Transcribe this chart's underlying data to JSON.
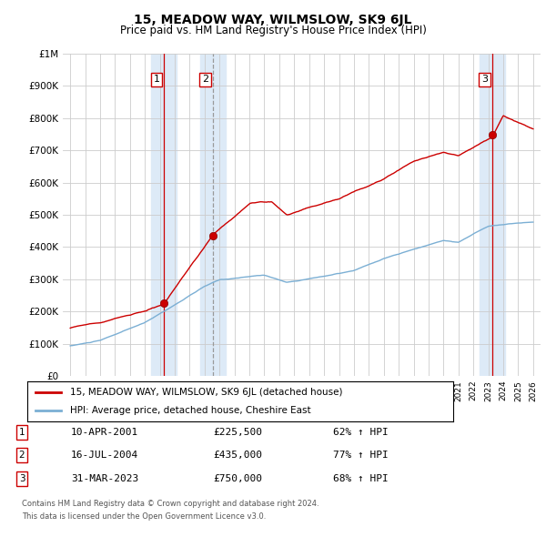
{
  "title": "15, MEADOW WAY, WILMSLOW, SK9 6JL",
  "subtitle": "Price paid vs. HM Land Registry's House Price Index (HPI)",
  "ylabel_ticks": [
    "£0",
    "£100K",
    "£200K",
    "£300K",
    "£400K",
    "£500K",
    "£600K",
    "£700K",
    "£800K",
    "£900K",
    "£1M"
  ],
  "ytick_values": [
    0,
    100000,
    200000,
    300000,
    400000,
    500000,
    600000,
    700000,
    800000,
    900000,
    1000000
  ],
  "xlim_start": 1994.5,
  "xlim_end": 2026.5,
  "ylim_min": 0,
  "ylim_max": 1000000,
  "sale_dates": [
    2001.27,
    2004.54,
    2023.25
  ],
  "sale_prices": [
    225500,
    435000,
    750000
  ],
  "sale_labels": [
    "1",
    "2",
    "3"
  ],
  "sale_vline_styles": [
    "solid",
    "dashed",
    "solid"
  ],
  "sale_vline_colors": [
    "#cc0000",
    "#aaaaaa",
    "#cc0000"
  ],
  "sale_info": [
    {
      "num": "1",
      "date": "10-APR-2001",
      "price": "£225,500",
      "change": "62% ↑ HPI"
    },
    {
      "num": "2",
      "date": "16-JUL-2004",
      "price": "£435,000",
      "change": "77% ↑ HPI"
    },
    {
      "num": "3",
      "date": "31-MAR-2023",
      "price": "£750,000",
      "change": "68% ↑ HPI"
    }
  ],
  "legend_line1": "15, MEADOW WAY, WILMSLOW, SK9 6JL (detached house)",
  "legend_line2": "HPI: Average price, detached house, Cheshire East",
  "footer1": "Contains HM Land Registry data © Crown copyright and database right 2024.",
  "footer2": "This data is licensed under the Open Government Licence v3.0.",
  "hpi_color": "#7bafd4",
  "price_color": "#cc0000",
  "shade_color": "#ddeaf7",
  "background_color": "#ffffff"
}
